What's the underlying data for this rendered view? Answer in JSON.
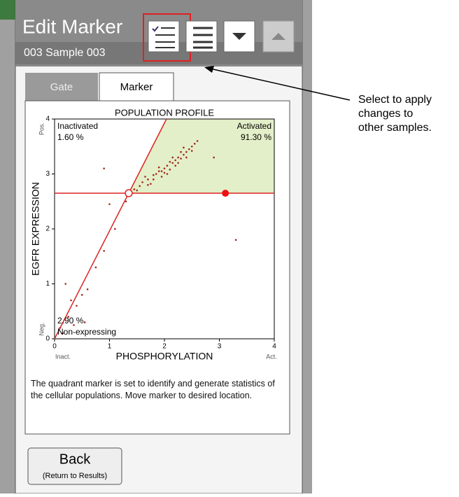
{
  "header": {
    "title": "Edit Marker",
    "subtitle": "003 Sample 003"
  },
  "tabs": [
    "Gate",
    "Marker"
  ],
  "plot": {
    "type": "scatter",
    "title": "POPULATION PROFILE",
    "x_label": "PHOSPHORYLATION",
    "y_label": "EGFR EXPRESSION",
    "x_low": "Inact.",
    "x_high": "Act.",
    "y_low": "Neg.",
    "y_high": "Pos.",
    "xlim": [
      0,
      4
    ],
    "ylim": [
      0,
      4
    ],
    "xticks": [
      0,
      1,
      2,
      3,
      4
    ],
    "yticks": [
      0,
      1,
      2,
      3,
      4
    ],
    "marker": {
      "x": 1.35,
      "y": 2.65,
      "handle_x": 3.11
    },
    "quadrants": [
      {
        "name": "Inactivated",
        "value": "1.60 %"
      },
      {
        "name": "Activated",
        "value": "91.30 %"
      },
      {
        "name": "Non-expressing",
        "value": "2.90 %"
      }
    ],
    "points": {
      "x": [
        1.45,
        1.55,
        1.6,
        1.7,
        1.75,
        1.8,
        1.85,
        1.9,
        1.95,
        2.0,
        2.05,
        2.1,
        2.15,
        2.2,
        2.25,
        2.3,
        2.35,
        2.4,
        2.45,
        2.5,
        2.55,
        2.6,
        1.65,
        1.9,
        2.0,
        2.1,
        2.2,
        2.3,
        1.8,
        2.15,
        2.4,
        1.7,
        2.05,
        2.25,
        2.5,
        1.5,
        1.95,
        2.35,
        0.1,
        0.25,
        0.4,
        0.5,
        0.3,
        0.15,
        0.6,
        0.2,
        0.9,
        1.1,
        0.75,
        1.3,
        1.0,
        0.9,
        2.9,
        3.3,
        0.55,
        0.35
      ],
      "y": [
        2.72,
        2.78,
        2.85,
        2.9,
        2.82,
        2.98,
        3.0,
        3.05,
        2.95,
        3.1,
        3.15,
        3.08,
        3.2,
        3.25,
        3.3,
        3.28,
        3.35,
        3.4,
        3.45,
        3.5,
        3.55,
        3.6,
        2.95,
        3.12,
        3.02,
        3.22,
        3.15,
        3.4,
        2.9,
        3.3,
        3.3,
        2.8,
        3.0,
        3.2,
        3.42,
        2.7,
        3.05,
        3.48,
        0.2,
        0.4,
        0.6,
        0.8,
        0.7,
        0.1,
        0.9,
        1.0,
        1.6,
        2.0,
        1.3,
        2.5,
        2.45,
        3.1,
        3.3,
        1.8,
        0.3,
        0.25
      ]
    }
  },
  "description": "The quadrant marker is set to identify and generate statistics of the cellular populations. Move marker to desired location.",
  "back_button": {
    "label": "Back",
    "sublabel": "(Return to Results)"
  },
  "annotation": [
    "Select to apply",
    "changes to",
    "other samples."
  ]
}
